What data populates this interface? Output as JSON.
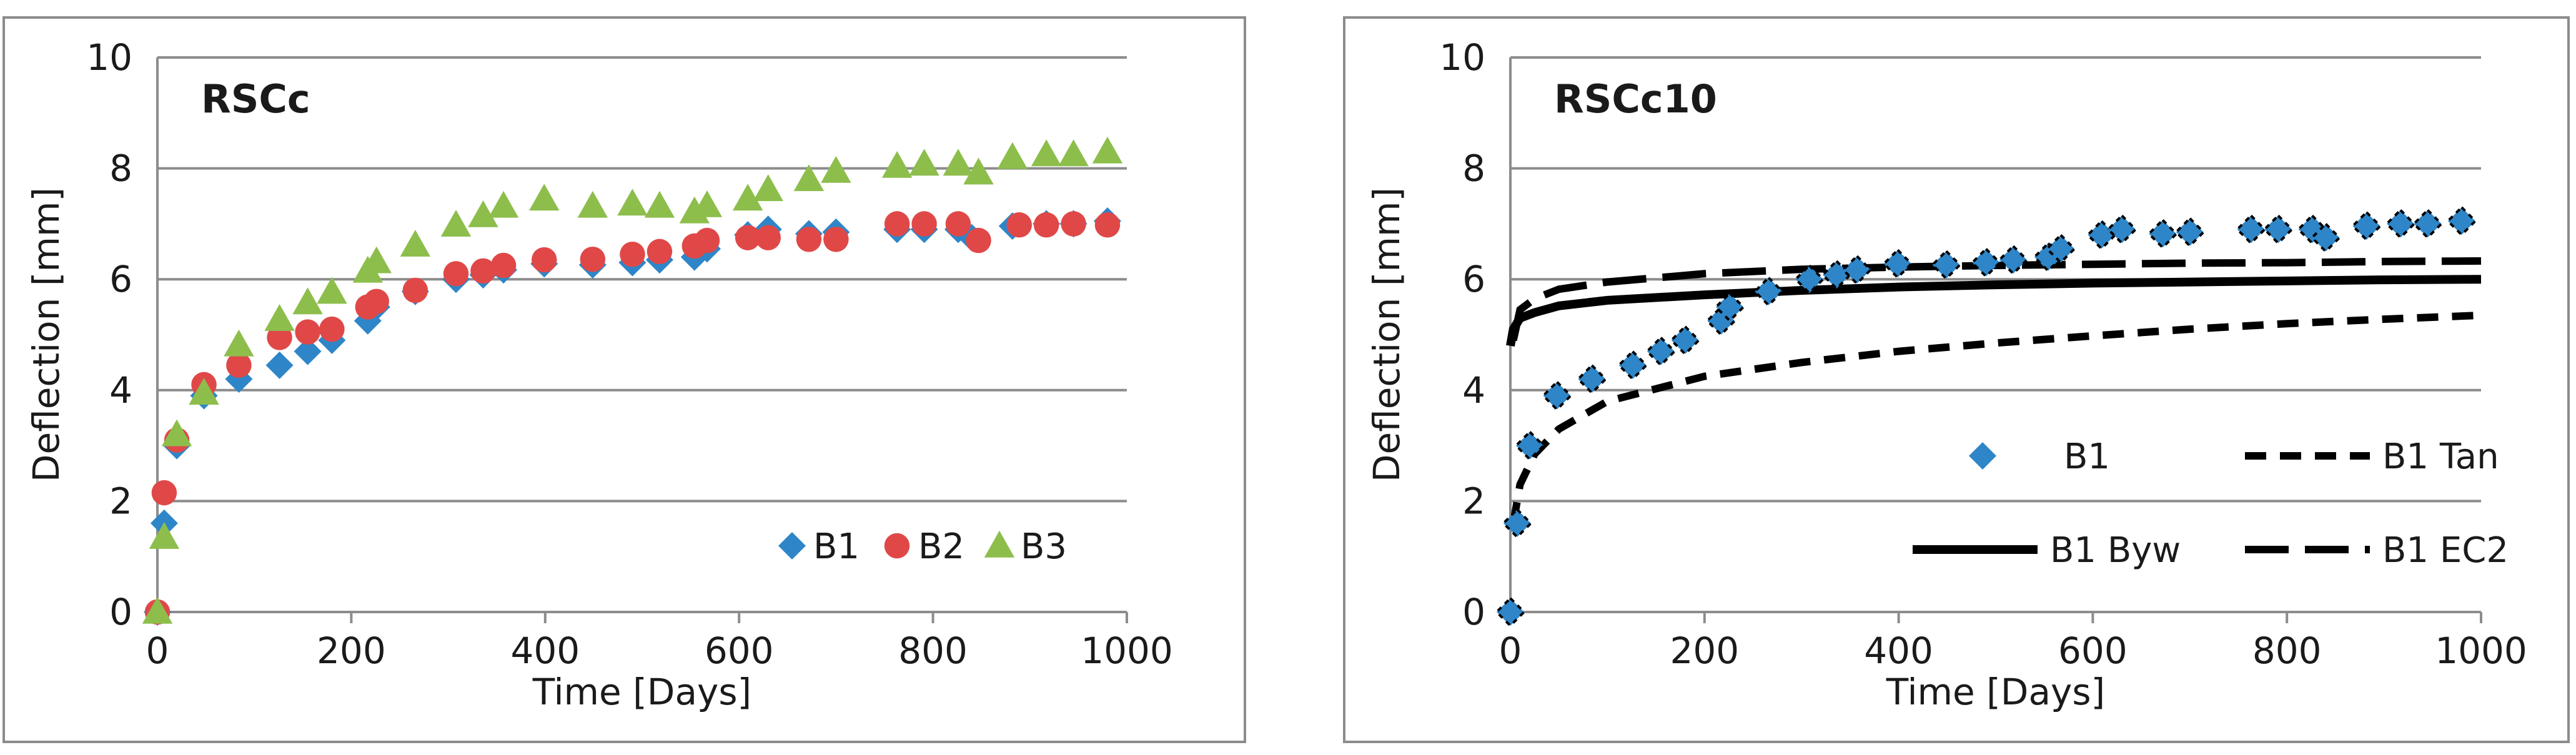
{
  "colors": {
    "b1": "#2e86c8",
    "b2": "#e04848",
    "b3": "#8dbe4c",
    "model_line": "#000000",
    "grid": "#8c8c8c",
    "axis": "#8c8c8c",
    "text": "#1a1a1a"
  },
  "chart_data": [
    {
      "type": "scatter",
      "title": "RSCc",
      "xlabel": "Time [Days]",
      "ylabel": "Deflection [mm]",
      "xlim": [
        0,
        1000
      ],
      "ylim": [
        0,
        10
      ],
      "xticks": [
        "0",
        "200",
        "400",
        "600",
        "800",
        "1000"
      ],
      "yticks": [
        "0",
        "2",
        "4",
        "6",
        "8",
        "10"
      ],
      "grid": "horizontal",
      "legend_position": "bottom-right",
      "legend": [
        "B1",
        "B2",
        "B3"
      ],
      "series": [
        {
          "name": "B1",
          "marker": "diamond",
          "points": [
            [
              0,
              0
            ],
            [
              7,
              1.6
            ],
            [
              20,
              3.0
            ],
            [
              48,
              3.9
            ],
            [
              84,
              4.2
            ],
            [
              126,
              4.45
            ],
            [
              155,
              4.7
            ],
            [
              180,
              4.9
            ],
            [
              217,
              5.25
            ],
            [
              226,
              5.5
            ],
            [
              266,
              5.78
            ],
            [
              308,
              6.0
            ],
            [
              336,
              6.08
            ],
            [
              357,
              6.17
            ],
            [
              399,
              6.28
            ],
            [
              449,
              6.26
            ],
            [
              490,
              6.3
            ],
            [
              518,
              6.35
            ],
            [
              554,
              6.4
            ],
            [
              567,
              6.55
            ],
            [
              609,
              6.8
            ],
            [
              630,
              6.9
            ],
            [
              672,
              6.82
            ],
            [
              700,
              6.85
            ],
            [
              763,
              6.9
            ],
            [
              791,
              6.9
            ],
            [
              826,
              6.9
            ],
            [
              840,
              6.75
            ],
            [
              882,
              6.96
            ],
            [
              917,
              7.0
            ],
            [
              945,
              7.0
            ],
            [
              980,
              7.05
            ]
          ]
        },
        {
          "name": "B2",
          "marker": "circle",
          "points": [
            [
              0,
              0
            ],
            [
              7,
              2.15
            ],
            [
              20,
              3.1
            ],
            [
              48,
              4.1
            ],
            [
              84,
              4.45
            ],
            [
              126,
              4.95
            ],
            [
              155,
              5.05
            ],
            [
              180,
              5.1
            ],
            [
              217,
              5.5
            ],
            [
              226,
              5.6
            ],
            [
              266,
              5.8
            ],
            [
              308,
              6.1
            ],
            [
              336,
              6.15
            ],
            [
              357,
              6.25
            ],
            [
              399,
              6.35
            ],
            [
              449,
              6.36
            ],
            [
              490,
              6.45
            ],
            [
              518,
              6.5
            ],
            [
              554,
              6.6
            ],
            [
              567,
              6.7
            ],
            [
              609,
              6.75
            ],
            [
              630,
              6.75
            ],
            [
              672,
              6.72
            ],
            [
              700,
              6.72
            ],
            [
              763,
              7.0
            ],
            [
              791,
              7.0
            ],
            [
              826,
              7.0
            ],
            [
              847,
              6.7
            ],
            [
              889,
              6.98
            ],
            [
              917,
              6.98
            ],
            [
              945,
              7.0
            ],
            [
              980,
              6.98
            ]
          ]
        },
        {
          "name": "B3",
          "marker": "triangle",
          "points": [
            [
              0,
              0
            ],
            [
              7,
              1.35
            ],
            [
              20,
              3.2
            ],
            [
              48,
              3.95
            ],
            [
              84,
              4.82
            ],
            [
              126,
              5.28
            ],
            [
              155,
              5.58
            ],
            [
              180,
              5.77
            ],
            [
              217,
              6.15
            ],
            [
              226,
              6.32
            ],
            [
              266,
              6.62
            ],
            [
              308,
              6.98
            ],
            [
              336,
              7.15
            ],
            [
              357,
              7.32
            ],
            [
              399,
              7.45
            ],
            [
              449,
              7.32
            ],
            [
              490,
              7.36
            ],
            [
              518,
              7.32
            ],
            [
              554,
              7.22
            ],
            [
              567,
              7.33
            ],
            [
              609,
              7.45
            ],
            [
              630,
              7.62
            ],
            [
              672,
              7.8
            ],
            [
              700,
              7.95
            ],
            [
              763,
              8.04
            ],
            [
              791,
              8.08
            ],
            [
              826,
              8.08
            ],
            [
              847,
              7.92
            ],
            [
              882,
              8.2
            ],
            [
              917,
              8.25
            ],
            [
              945,
              8.25
            ],
            [
              980,
              8.3
            ]
          ]
        }
      ]
    },
    {
      "type": "scatter",
      "title": "RSCc10",
      "xlabel": "Time [Days]",
      "ylabel": "Deflection [mm]",
      "xlim": [
        0,
        1000
      ],
      "ylim": [
        0,
        10
      ],
      "xticks": [
        "0",
        "200",
        "400",
        "600",
        "800",
        "1000"
      ],
      "yticks": [
        "0",
        "2",
        "4",
        "6",
        "8",
        "10"
      ],
      "grid": "horizontal",
      "legend_position": "bottom-right",
      "legend": [
        "B1",
        "B1 Tan",
        "B1 Byw",
        "B1 EC2"
      ],
      "series": [
        {
          "name": "B1",
          "marker": "diamond",
          "points": [
            [
              0,
              0
            ],
            [
              7,
              1.6
            ],
            [
              20,
              3.0
            ],
            [
              48,
              3.9
            ],
            [
              84,
              4.2
            ],
            [
              126,
              4.45
            ],
            [
              155,
              4.7
            ],
            [
              180,
              4.9
            ],
            [
              217,
              5.25
            ],
            [
              226,
              5.5
            ],
            [
              266,
              5.78
            ],
            [
              308,
              6.0
            ],
            [
              336,
              6.08
            ],
            [
              357,
              6.17
            ],
            [
              399,
              6.28
            ],
            [
              449,
              6.26
            ],
            [
              490,
              6.3
            ],
            [
              518,
              6.35
            ],
            [
              554,
              6.4
            ],
            [
              567,
              6.55
            ],
            [
              609,
              6.8
            ],
            [
              630,
              6.9
            ],
            [
              672,
              6.82
            ],
            [
              700,
              6.85
            ],
            [
              763,
              6.9
            ],
            [
              791,
              6.9
            ],
            [
              826,
              6.9
            ],
            [
              840,
              6.75
            ],
            [
              882,
              6.96
            ],
            [
              917,
              7.0
            ],
            [
              945,
              7.0
            ],
            [
              980,
              7.05
            ]
          ]
        },
        {
          "name": "B1 Tan",
          "line": "short-dash",
          "points": [
            [
              3,
              1.6
            ],
            [
              10,
              2.3
            ],
            [
              25,
              2.85
            ],
            [
              50,
              3.3
            ],
            [
              100,
              3.8
            ],
            [
              200,
              4.25
            ],
            [
              300,
              4.5
            ],
            [
              400,
              4.7
            ],
            [
              500,
              4.85
            ],
            [
              600,
              4.98
            ],
            [
              700,
              5.1
            ],
            [
              800,
              5.2
            ],
            [
              900,
              5.28
            ],
            [
              1000,
              5.35
            ]
          ]
        },
        {
          "name": "B1 Byw",
          "line": "solid",
          "points": [
            [
              0,
              4.8
            ],
            [
              3,
              5.1
            ],
            [
              10,
              5.3
            ],
            [
              25,
              5.4
            ],
            [
              50,
              5.52
            ],
            [
              100,
              5.62
            ],
            [
              200,
              5.72
            ],
            [
              300,
              5.8
            ],
            [
              400,
              5.86
            ],
            [
              500,
              5.9
            ],
            [
              600,
              5.93
            ],
            [
              700,
              5.95
            ],
            [
              800,
              5.97
            ],
            [
              900,
              5.99
            ],
            [
              1000,
              6.0
            ]
          ]
        },
        {
          "name": "B1 EC2",
          "line": "long-dash",
          "points": [
            [
              3,
              4.9
            ],
            [
              10,
              5.45
            ],
            [
              25,
              5.65
            ],
            [
              50,
              5.82
            ],
            [
              100,
              5.95
            ],
            [
              200,
              6.1
            ],
            [
              300,
              6.18
            ],
            [
              400,
              6.22
            ],
            [
              500,
              6.25
            ],
            [
              600,
              6.27
            ],
            [
              700,
              6.29
            ],
            [
              800,
              6.3
            ],
            [
              900,
              6.32
            ],
            [
              1000,
              6.33
            ]
          ]
        }
      ]
    }
  ]
}
